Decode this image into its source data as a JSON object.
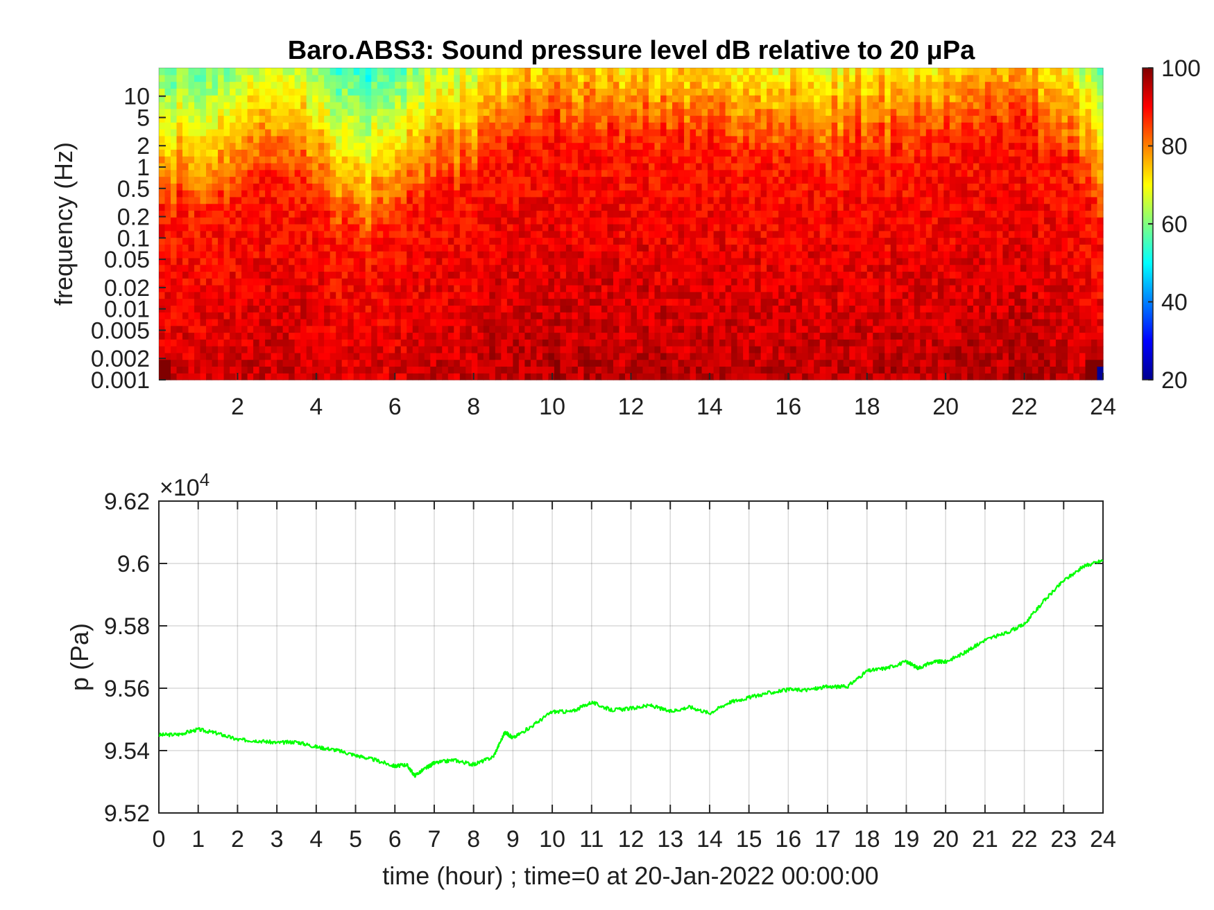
{
  "chart_data": [
    {
      "type": "heatmap",
      "title": "Baro.ABS3: Sound pressure level dB relative to 20 μPa",
      "ylabel": "frequency (Hz)",
      "xlabel": "",
      "x_ticks": [
        "2",
        "4",
        "6",
        "8",
        "10",
        "12",
        "14",
        "16",
        "18",
        "20",
        "22",
        "24"
      ],
      "x_tick_values": [
        2,
        4,
        6,
        8,
        10,
        12,
        14,
        16,
        18,
        20,
        22,
        24
      ],
      "xlim": [
        0,
        24
      ],
      "y_scale": "log",
      "y_ticks": [
        "10",
        "5",
        "2",
        "1",
        "0.5",
        "0.2",
        "0.1",
        "0.05",
        "0.02",
        "0.01",
        "0.005",
        "0.002",
        "0.001"
      ],
      "y_tick_values": [
        10,
        5,
        2,
        1,
        0.5,
        0.2,
        0.1,
        0.05,
        0.02,
        0.01,
        0.005,
        0.002,
        0.001
      ],
      "ylim": [
        0.001,
        25
      ],
      "colormap": "jet",
      "colorbar": {
        "ticks": [
          "20",
          "40",
          "60",
          "80",
          "100"
        ],
        "tick_values": [
          20,
          40,
          60,
          80,
          100
        ],
        "range": [
          20,
          100
        ]
      },
      "time_profile": {
        "x": [
          0,
          1,
          2,
          3,
          4,
          5,
          6,
          7,
          8,
          9,
          10,
          11,
          12,
          13,
          14,
          15,
          16,
          17,
          18,
          19,
          20,
          21,
          22,
          23,
          24
        ],
        "upper_edge_hz": [
          0.3,
          0.35,
          0.4,
          0.9,
          0.5,
          0.08,
          0.25,
          0.6,
          0.9,
          3,
          4,
          3.5,
          3,
          3,
          2.5,
          2,
          2,
          1.5,
          2,
          2.5,
          3,
          5,
          4,
          2,
          0.3
        ]
      },
      "grid": false
    },
    {
      "type": "line",
      "title": "",
      "xlabel": "time (hour) ; time=0 at 20-Jan-2022 00:00:00",
      "ylabel": "p (Pa)",
      "y_multiplier": "×10",
      "y_multiplier_exp": "4",
      "xlim": [
        0,
        24
      ],
      "ylim": [
        9.52,
        9.62
      ],
      "x_ticks": [
        "0",
        "1",
        "2",
        "3",
        "4",
        "5",
        "6",
        "7",
        "8",
        "9",
        "10",
        "11",
        "12",
        "13",
        "14",
        "15",
        "16",
        "17",
        "18",
        "19",
        "20",
        "21",
        "22",
        "23",
        "24"
      ],
      "x_tick_values": [
        0,
        1,
        2,
        3,
        4,
        5,
        6,
        7,
        8,
        9,
        10,
        11,
        12,
        13,
        14,
        15,
        16,
        17,
        18,
        19,
        20,
        21,
        22,
        23,
        24
      ],
      "y_ticks": [
        "9.52",
        "9.54",
        "9.56",
        "9.58",
        "9.6",
        "9.62"
      ],
      "y_tick_values": [
        9.52,
        9.54,
        9.56,
        9.58,
        9.6,
        9.62
      ],
      "grid": true,
      "series": [
        {
          "color": "#00ff00",
          "x": [
            0,
            0.5,
            1,
            1.5,
            2,
            2.5,
            3,
            3.5,
            4,
            4.5,
            5,
            5.5,
            6,
            6.3,
            6.5,
            6.8,
            7,
            7.5,
            8,
            8.5,
            8.8,
            9,
            9.5,
            10,
            10.5,
            11,
            11.5,
            12,
            12.5,
            13,
            13.5,
            14,
            14.5,
            15,
            15.5,
            16,
            16.5,
            17,
            17.5,
            18,
            18.5,
            19,
            19.3,
            19.7,
            20,
            20.5,
            21,
            21.5,
            22,
            22.5,
            23,
            23.5,
            24
          ],
          "y": [
            9.545,
            9.5452,
            9.5468,
            9.5455,
            9.5435,
            9.5432,
            9.5425,
            9.5428,
            9.5412,
            9.5402,
            9.5385,
            9.537,
            9.535,
            9.5355,
            9.532,
            9.5345,
            9.536,
            9.537,
            9.5355,
            9.538,
            9.546,
            9.544,
            9.548,
            9.5525,
            9.5525,
            9.5555,
            9.553,
            9.5535,
            9.5545,
            9.5525,
            9.554,
            9.552,
            9.5555,
            9.557,
            9.5585,
            9.5595,
            9.5595,
            9.5605,
            9.5605,
            9.5655,
            9.5665,
            9.5685,
            9.5665,
            9.5685,
            9.5685,
            9.5715,
            9.5755,
            9.5775,
            9.5805,
            9.588,
            9.5945,
            9.599,
            9.601
          ]
        }
      ]
    }
  ]
}
